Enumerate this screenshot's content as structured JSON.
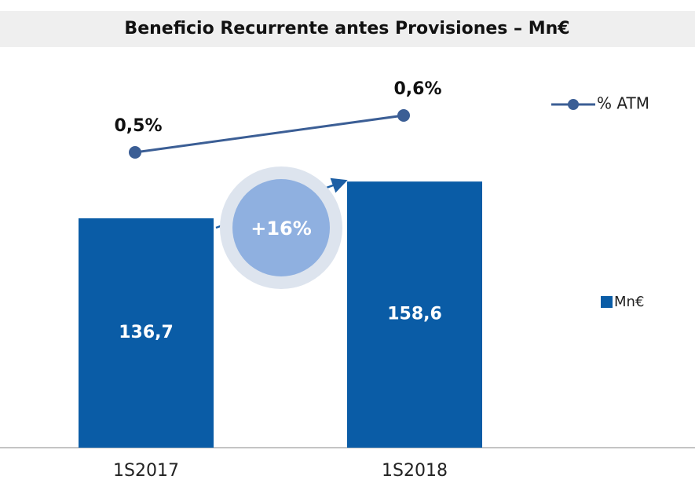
{
  "chart_data": {
    "type": "bar",
    "title": "Beneficio Recurrente antes Provisiones – Mn€",
    "categories": [
      "1S2017",
      "1S2018"
    ],
    "series": [
      {
        "name": "Mn€",
        "type": "bar",
        "color": "#0a5ca6",
        "values": [
          136.7,
          158.6
        ],
        "value_labels": [
          "136,7",
          "158,6"
        ]
      },
      {
        "name": "% ATM",
        "type": "line",
        "axis": "y2",
        "color": "#3b5e95",
        "values": [
          0.5,
          0.6
        ],
        "value_labels": [
          "0,5%",
          "0,6%"
        ]
      }
    ],
    "ylim": [
      0,
      220
    ],
    "y2lim": [
      -0.3,
      0.7
    ],
    "annotations": [
      "+16%"
    ]
  }
}
